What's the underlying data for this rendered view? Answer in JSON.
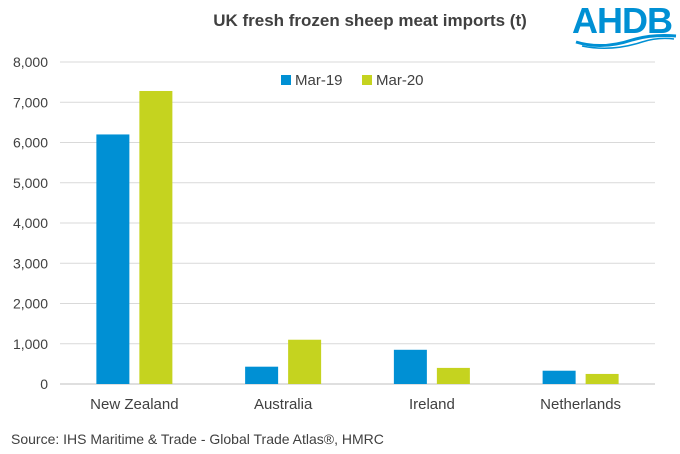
{
  "title": "UK fresh frozen sheep meat imports (t)",
  "logo": {
    "text": "AHDB",
    "color": "#0090d4"
  },
  "source": "Source: IHS Maritime & Trade - Global Trade Atlas®, HMRC",
  "chart_data": {
    "type": "bar",
    "title": "UK fresh frozen sheep meat imports (t)",
    "categories": [
      "New Zealand",
      "Australia",
      "Ireland",
      "Netherlands"
    ],
    "series": [
      {
        "name": "Mar-19",
        "color": "#0090d4",
        "values": [
          6200,
          430,
          850,
          330
        ]
      },
      {
        "name": "Mar-20",
        "color": "#c5d31f",
        "values": [
          7280,
          1100,
          400,
          250
        ]
      }
    ],
    "ylim": [
      0,
      8000
    ],
    "yticks": [
      0,
      1000,
      2000,
      3000,
      4000,
      5000,
      6000,
      7000,
      8000
    ],
    "ytick_labels": [
      "0",
      "1,000",
      "2,000",
      "3,000",
      "4,000",
      "5,000",
      "6,000",
      "7,000",
      "8,000"
    ],
    "grid": true,
    "legend_position": "top-center"
  }
}
